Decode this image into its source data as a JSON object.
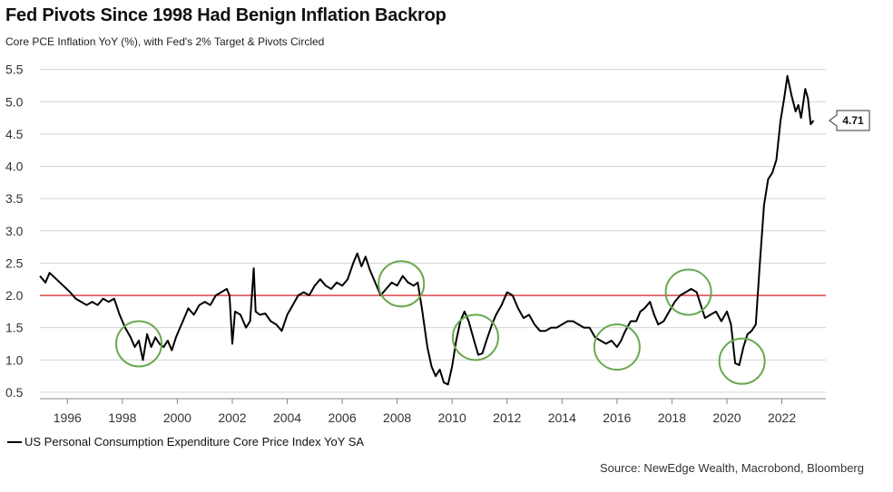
{
  "chart_data": {
    "type": "line",
    "title": "Fed Pivots Since 1998 Had Benign Inflation Backrop",
    "subtitle": "Core PCE Inflation YoY (%), with Fed's 2% Target & Pivots Circled",
    "source": "Source: NewEdge Wealth, Macrobond, Bloomberg",
    "xlim": [
      1995.0,
      2023.6
    ],
    "ylim": [
      0.4,
      5.65
    ],
    "grid": true,
    "legend_position": "bottom-left",
    "x_ticks": [
      1996,
      1998,
      2000,
      2002,
      2004,
      2006,
      2008,
      2010,
      2012,
      2014,
      2016,
      2018,
      2020,
      2022
    ],
    "y_ticks": [
      "0.5",
      "1.0",
      "1.5",
      "2.0",
      "2.5",
      "3.0",
      "3.5",
      "4.0",
      "4.5",
      "5.0",
      "5.5"
    ],
    "target": {
      "value": 2.0,
      "color": "#e05050"
    },
    "series": [
      {
        "name": "US Personal Consumption Expenditure Core Price Index YoY SA",
        "color": "#000000",
        "points": [
          [
            1995.0,
            2.3
          ],
          [
            1995.2,
            2.2
          ],
          [
            1995.35,
            2.35
          ],
          [
            1995.6,
            2.25
          ],
          [
            1995.85,
            2.15
          ],
          [
            1996.1,
            2.05
          ],
          [
            1996.3,
            1.95
          ],
          [
            1996.5,
            1.9
          ],
          [
            1996.7,
            1.85
          ],
          [
            1996.9,
            1.9
          ],
          [
            1997.1,
            1.85
          ],
          [
            1997.3,
            1.95
          ],
          [
            1997.5,
            1.9
          ],
          [
            1997.7,
            1.95
          ],
          [
            1997.9,
            1.7
          ],
          [
            1998.1,
            1.5
          ],
          [
            1998.3,
            1.35
          ],
          [
            1998.45,
            1.2
          ],
          [
            1998.6,
            1.3
          ],
          [
            1998.75,
            1.0
          ],
          [
            1998.9,
            1.4
          ],
          [
            1999.05,
            1.2
          ],
          [
            1999.2,
            1.35
          ],
          [
            1999.35,
            1.25
          ],
          [
            1999.5,
            1.2
          ],
          [
            1999.65,
            1.3
          ],
          [
            1999.8,
            1.15
          ],
          [
            1999.95,
            1.35
          ],
          [
            2000.1,
            1.5
          ],
          [
            2000.25,
            1.65
          ],
          [
            2000.4,
            1.8
          ],
          [
            2000.6,
            1.7
          ],
          [
            2000.8,
            1.85
          ],
          [
            2001.0,
            1.9
          ],
          [
            2001.2,
            1.85
          ],
          [
            2001.4,
            2.0
          ],
          [
            2001.6,
            2.05
          ],
          [
            2001.8,
            2.1
          ],
          [
            2001.9,
            2.0
          ],
          [
            2002.0,
            1.25
          ],
          [
            2002.1,
            1.75
          ],
          [
            2002.3,
            1.7
          ],
          [
            2002.5,
            1.5
          ],
          [
            2002.65,
            1.6
          ],
          [
            2002.78,
            2.42
          ],
          [
            2002.85,
            1.75
          ],
          [
            2003.0,
            1.7
          ],
          [
            2003.2,
            1.72
          ],
          [
            2003.4,
            1.6
          ],
          [
            2003.6,
            1.55
          ],
          [
            2003.8,
            1.45
          ],
          [
            2004.0,
            1.7
          ],
          [
            2004.2,
            1.85
          ],
          [
            2004.4,
            2.0
          ],
          [
            2004.6,
            2.05
          ],
          [
            2004.8,
            2.0
          ],
          [
            2005.0,
            2.15
          ],
          [
            2005.2,
            2.25
          ],
          [
            2005.4,
            2.15
          ],
          [
            2005.6,
            2.1
          ],
          [
            2005.8,
            2.2
          ],
          [
            2006.0,
            2.15
          ],
          [
            2006.2,
            2.25
          ],
          [
            2006.4,
            2.5
          ],
          [
            2006.55,
            2.65
          ],
          [
            2006.7,
            2.45
          ],
          [
            2006.85,
            2.6
          ],
          [
            2007.0,
            2.4
          ],
          [
            2007.2,
            2.2
          ],
          [
            2007.4,
            2.0
          ],
          [
            2007.6,
            2.1
          ],
          [
            2007.8,
            2.2
          ],
          [
            2008.0,
            2.15
          ],
          [
            2008.2,
            2.3
          ],
          [
            2008.4,
            2.2
          ],
          [
            2008.6,
            2.15
          ],
          [
            2008.75,
            2.2
          ],
          [
            2008.9,
            1.8
          ],
          [
            2009.0,
            1.5
          ],
          [
            2009.1,
            1.2
          ],
          [
            2009.25,
            0.9
          ],
          [
            2009.4,
            0.75
          ],
          [
            2009.55,
            0.85
          ],
          [
            2009.7,
            0.65
          ],
          [
            2009.85,
            0.62
          ],
          [
            2010.0,
            0.9
          ],
          [
            2010.15,
            1.3
          ],
          [
            2010.3,
            1.6
          ],
          [
            2010.45,
            1.75
          ],
          [
            2010.6,
            1.6
          ],
          [
            2010.8,
            1.3
          ],
          [
            2010.95,
            1.08
          ],
          [
            2011.1,
            1.1
          ],
          [
            2011.25,
            1.3
          ],
          [
            2011.45,
            1.55
          ],
          [
            2011.6,
            1.7
          ],
          [
            2011.8,
            1.85
          ],
          [
            2012.0,
            2.05
          ],
          [
            2012.2,
            2.0
          ],
          [
            2012.4,
            1.8
          ],
          [
            2012.6,
            1.65
          ],
          [
            2012.8,
            1.7
          ],
          [
            2013.0,
            1.55
          ],
          [
            2013.2,
            1.45
          ],
          [
            2013.4,
            1.45
          ],
          [
            2013.6,
            1.5
          ],
          [
            2013.8,
            1.5
          ],
          [
            2014.0,
            1.55
          ],
          [
            2014.2,
            1.6
          ],
          [
            2014.4,
            1.6
          ],
          [
            2014.6,
            1.55
          ],
          [
            2014.8,
            1.5
          ],
          [
            2015.0,
            1.5
          ],
          [
            2015.2,
            1.35
          ],
          [
            2015.4,
            1.3
          ],
          [
            2015.6,
            1.25
          ],
          [
            2015.8,
            1.3
          ],
          [
            2016.0,
            1.2
          ],
          [
            2016.15,
            1.3
          ],
          [
            2016.3,
            1.45
          ],
          [
            2016.5,
            1.6
          ],
          [
            2016.7,
            1.6
          ],
          [
            2016.85,
            1.75
          ],
          [
            2017.0,
            1.8
          ],
          [
            2017.2,
            1.9
          ],
          [
            2017.35,
            1.7
          ],
          [
            2017.5,
            1.55
          ],
          [
            2017.7,
            1.6
          ],
          [
            2017.9,
            1.75
          ],
          [
            2018.1,
            1.9
          ],
          [
            2018.3,
            2.0
          ],
          [
            2018.5,
            2.05
          ],
          [
            2018.7,
            2.1
          ],
          [
            2018.9,
            2.05
          ],
          [
            2019.05,
            1.85
          ],
          [
            2019.2,
            1.65
          ],
          [
            2019.4,
            1.7
          ],
          [
            2019.6,
            1.75
          ],
          [
            2019.8,
            1.6
          ],
          [
            2020.0,
            1.75
          ],
          [
            2020.15,
            1.55
          ],
          [
            2020.3,
            0.95
          ],
          [
            2020.45,
            0.92
          ],
          [
            2020.6,
            1.2
          ],
          [
            2020.75,
            1.4
          ],
          [
            2020.9,
            1.45
          ],
          [
            2021.05,
            1.55
          ],
          [
            2021.2,
            2.5
          ],
          [
            2021.35,
            3.4
          ],
          [
            2021.5,
            3.8
          ],
          [
            2021.65,
            3.9
          ],
          [
            2021.8,
            4.1
          ],
          [
            2021.95,
            4.7
          ],
          [
            2022.1,
            5.1
          ],
          [
            2022.2,
            5.4
          ],
          [
            2022.35,
            5.1
          ],
          [
            2022.5,
            4.85
          ],
          [
            2022.6,
            4.95
          ],
          [
            2022.7,
            4.75
          ],
          [
            2022.85,
            5.2
          ],
          [
            2022.95,
            5.05
          ],
          [
            2023.05,
            4.65
          ],
          [
            2023.15,
            4.71
          ]
        ]
      }
    ],
    "pivots": [
      {
        "x": 1998.6,
        "y": 1.25
      },
      {
        "x": 2008.15,
        "y": 2.18
      },
      {
        "x": 2010.85,
        "y": 1.35
      },
      {
        "x": 2016.0,
        "y": 1.2
      },
      {
        "x": 2018.6,
        "y": 2.05
      },
      {
        "x": 2020.55,
        "y": 0.98
      }
    ],
    "callout": {
      "label": "4.71",
      "value": 4.71
    },
    "colors": {
      "grid": "#d4d4d4",
      "pivot_circle": "#6aa84f",
      "axis": "#888888"
    }
  }
}
